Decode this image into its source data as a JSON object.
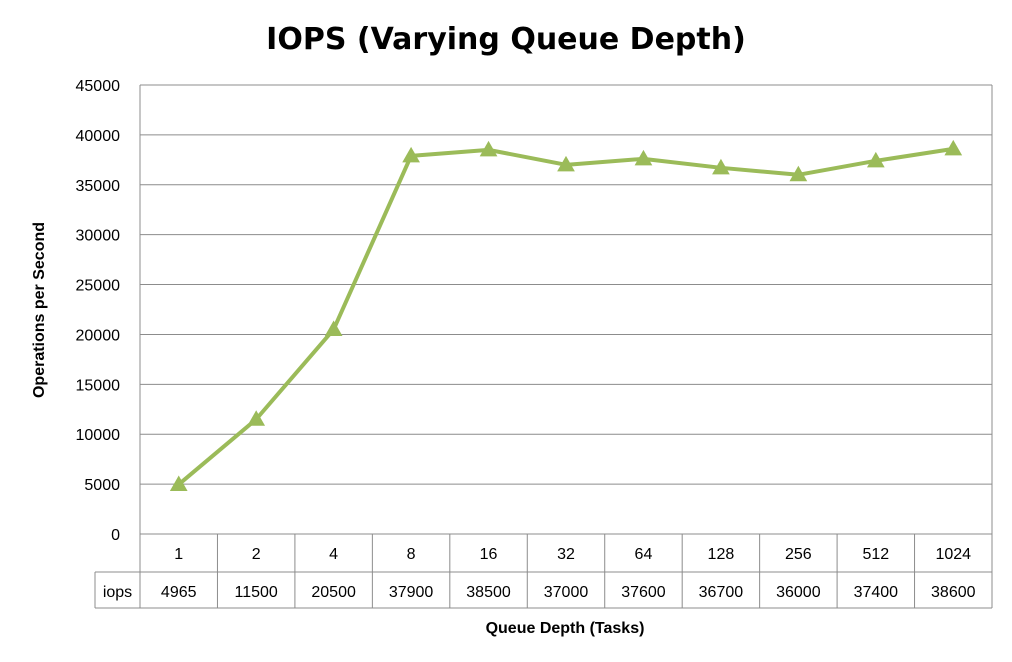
{
  "chart_data": {
    "type": "line",
    "title": "IOPS (Varying Queue Depth)",
    "xlabel": "Queue Depth (Tasks)",
    "ylabel": "Operations per Second",
    "ylim": [
      0,
      45000
    ],
    "y_ticks": [
      "0",
      "5000",
      "10000",
      "15000",
      "20000",
      "25000",
      "30000",
      "35000",
      "40000",
      "45000"
    ],
    "grid": true,
    "marker": "triangle",
    "color": "#9BBB59",
    "categories": [
      "1",
      "2",
      "4",
      "8",
      "16",
      "32",
      "64",
      "128",
      "256",
      "512",
      "1024"
    ],
    "series": [
      {
        "name": "iops",
        "values": [
          4965,
          11500,
          20500,
          37900,
          38500,
          37000,
          37600,
          36700,
          36000,
          37400,
          38600
        ],
        "labels": [
          "4965",
          "11500",
          "20500",
          "37900",
          "38500",
          "37000",
          "37600",
          "36700",
          "36000",
          "37400",
          "38600"
        ]
      }
    ]
  }
}
